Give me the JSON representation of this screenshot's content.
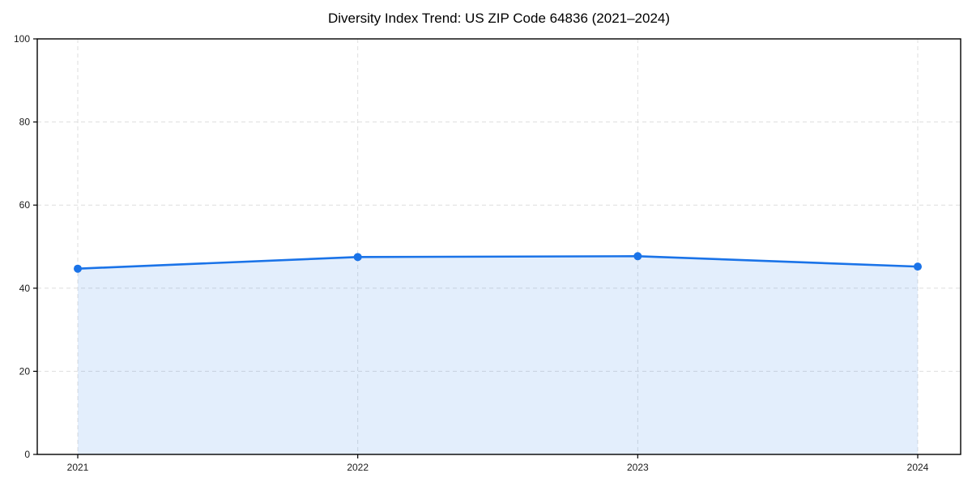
{
  "chart_data": {
    "type": "area",
    "title": "Diversity Index Trend: US ZIP Code 64836 (2021–2024)",
    "series_name": "Diversity Index",
    "x": [
      "2021",
      "2022",
      "2023",
      "2024"
    ],
    "values": [
      44.7,
      47.5,
      47.7,
      45.2
    ],
    "xlabel": "",
    "ylabel": "",
    "ylim": [
      0,
      100
    ],
    "yticks": [
      0,
      20,
      40,
      60,
      80,
      100
    ],
    "grid": true,
    "grid_style": "dashed",
    "legend": "none",
    "colors": {
      "line": "#1a73e8",
      "marker": "#1a73e8",
      "fill": "rgba(26, 115, 232, 0.12)",
      "grid": "#dedede",
      "frame": "#000000",
      "tick_text": "#1a1a1a",
      "background": "#ffffff"
    }
  }
}
